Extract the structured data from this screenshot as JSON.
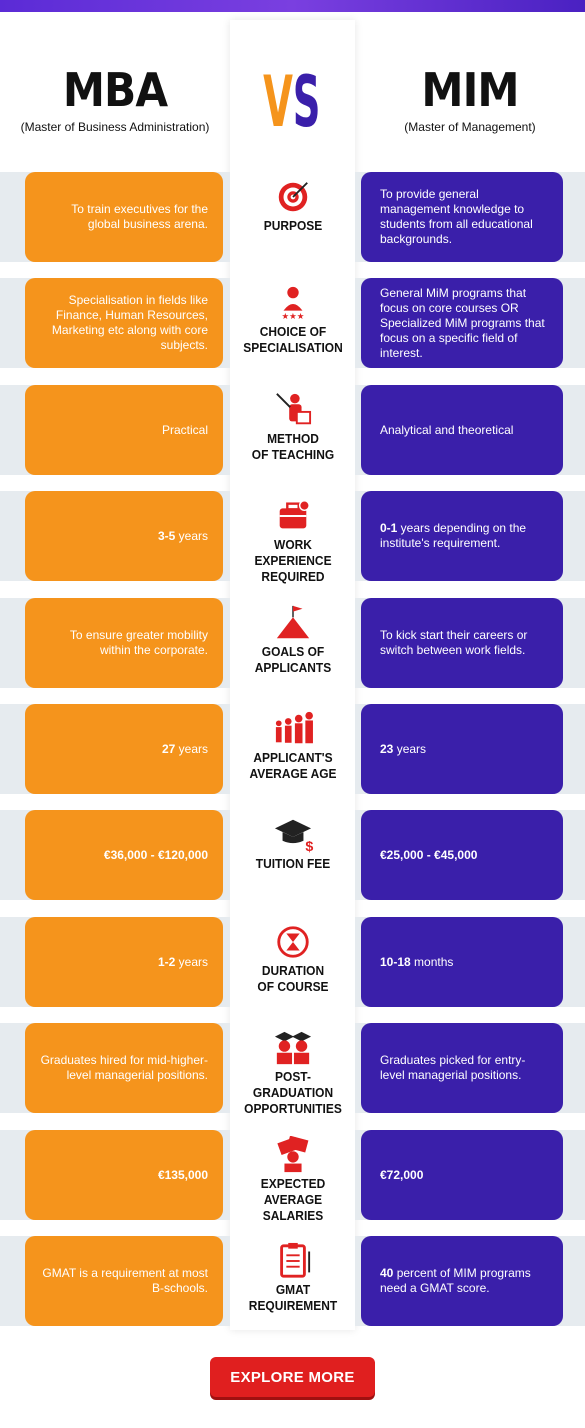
{
  "header": {
    "left_title": "MBA",
    "left_subtitle": "(Master of Business Administration)",
    "right_title": "MIM",
    "right_subtitle": "(Master of Management)",
    "vs_text": "VS"
  },
  "colors": {
    "mba": "#f5941c",
    "mim": "#3a1faa",
    "icon": "#e02222",
    "button": "#e01f1f"
  },
  "rows": [
    {
      "label": "PURPOSE",
      "icon": "target-icon",
      "mba": "To train executives for the global business arena.",
      "mim": "To provide general management knowledge to students from all educational backgrounds."
    },
    {
      "label": "CHOICE OF SPECIALISATION",
      "icon": "specialist-icon",
      "mba": "Specialisation in fields like Finance, Human Resources, Marketing etc along with core subjects.",
      "mim": "General MiM programs that focus on core courses OR Specialized MiM programs that focus on a specific field of interest."
    },
    {
      "label": "METHOD OF TEACHING",
      "icon": "teacher-icon",
      "mba": "Practical",
      "mim": "Analytical and theoretical"
    },
    {
      "label": "WORK EXPERIENCE REQUIRED",
      "icon": "briefcase-icon",
      "mba_bold": "3-5",
      "mba": " years",
      "mim_bold": "0-1",
      "mim": " years depending on the institute's requirement."
    },
    {
      "label": "GOALS OF APPLICANTS",
      "icon": "mountain-flag-icon",
      "mba": "To ensure greater mobility within the corporate.",
      "mim": "To kick start their careers or switch between work fields."
    },
    {
      "label": "APPLICANT'S AVERAGE AGE",
      "icon": "people-icon",
      "mba_bold": "27",
      "mba": " years",
      "mim_bold": "23",
      "mim": " years"
    },
    {
      "label": "TUITION FEE",
      "icon": "graduation-cap-icon",
      "mba_bold": "€36,000 - €120,000",
      "mba": "",
      "mim_bold": "€25,000 - €45,000",
      "mim": ""
    },
    {
      "label": "DURATION OF COURSE",
      "icon": "hourglass-icon",
      "mba_bold": "1-2",
      "mba": " years",
      "mim_bold": "10-18",
      "mim": " months"
    },
    {
      "label": "POST-GRADUATION OPPORTUNITIES",
      "icon": "graduates-icon",
      "mba": "Graduates hired for mid-higher-level managerial positions.",
      "mim": "Graduates picked for entry-level managerial positions."
    },
    {
      "label": "EXPECTED AVERAGE SALARIES",
      "icon": "money-icon",
      "mba_bold": "€135,000",
      "mba": "",
      "mim_bold": "€72,000",
      "mim": ""
    },
    {
      "label": "GMAT REQUIREMENT",
      "icon": "clipboard-icon",
      "mba": "GMAT is a requirement at most B-schools.",
      "mim_bold": "40",
      "mim": " percent of MIM programs need a GMAT score."
    }
  ],
  "cta": {
    "label": "EXPLORE MORE"
  }
}
